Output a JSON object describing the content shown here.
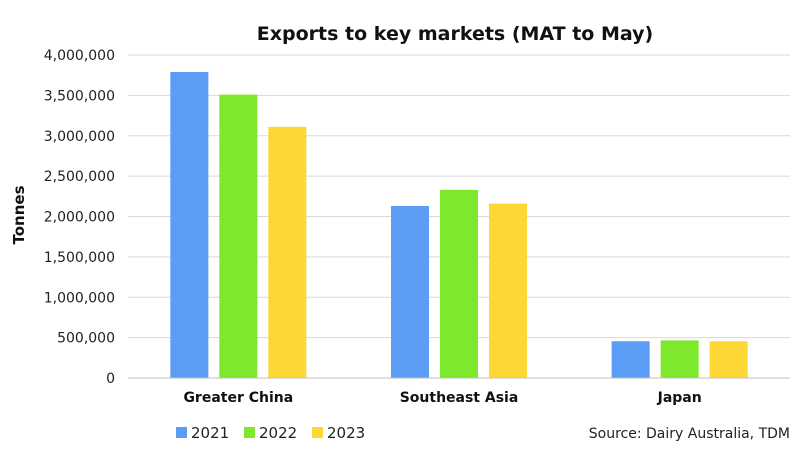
{
  "chart_data": {
    "type": "bar",
    "title": "Exports to key markets (MAT to May)",
    "ylabel": "Tonnes",
    "xlabel": "",
    "categories": [
      "Greater China",
      "Southeast Asia",
      "Japan"
    ],
    "series": [
      {
        "name": "2021",
        "color": "#5b9cf6",
        "values": [
          3790000,
          2130000,
          455000
        ]
      },
      {
        "name": "2022",
        "color": "#7ee82c",
        "values": [
          3510000,
          2330000,
          465000
        ]
      },
      {
        "name": "2023",
        "color": "#fdd835",
        "values": [
          3110000,
          2160000,
          455000
        ]
      }
    ],
    "ylim": [
      0,
      4000000
    ],
    "yticks": [
      0,
      500000,
      1000000,
      1500000,
      2000000,
      2500000,
      3000000,
      3500000,
      4000000
    ],
    "ytick_labels": [
      "0",
      "500,000",
      "1,000,000",
      "1,500,000",
      "2,000,000",
      "2,500,000",
      "3,000,000",
      "3,500,000",
      "4,000,000"
    ],
    "grid": true,
    "legend_position": "bottom-left",
    "source": "Source: Dairy Australia, TDM"
  }
}
